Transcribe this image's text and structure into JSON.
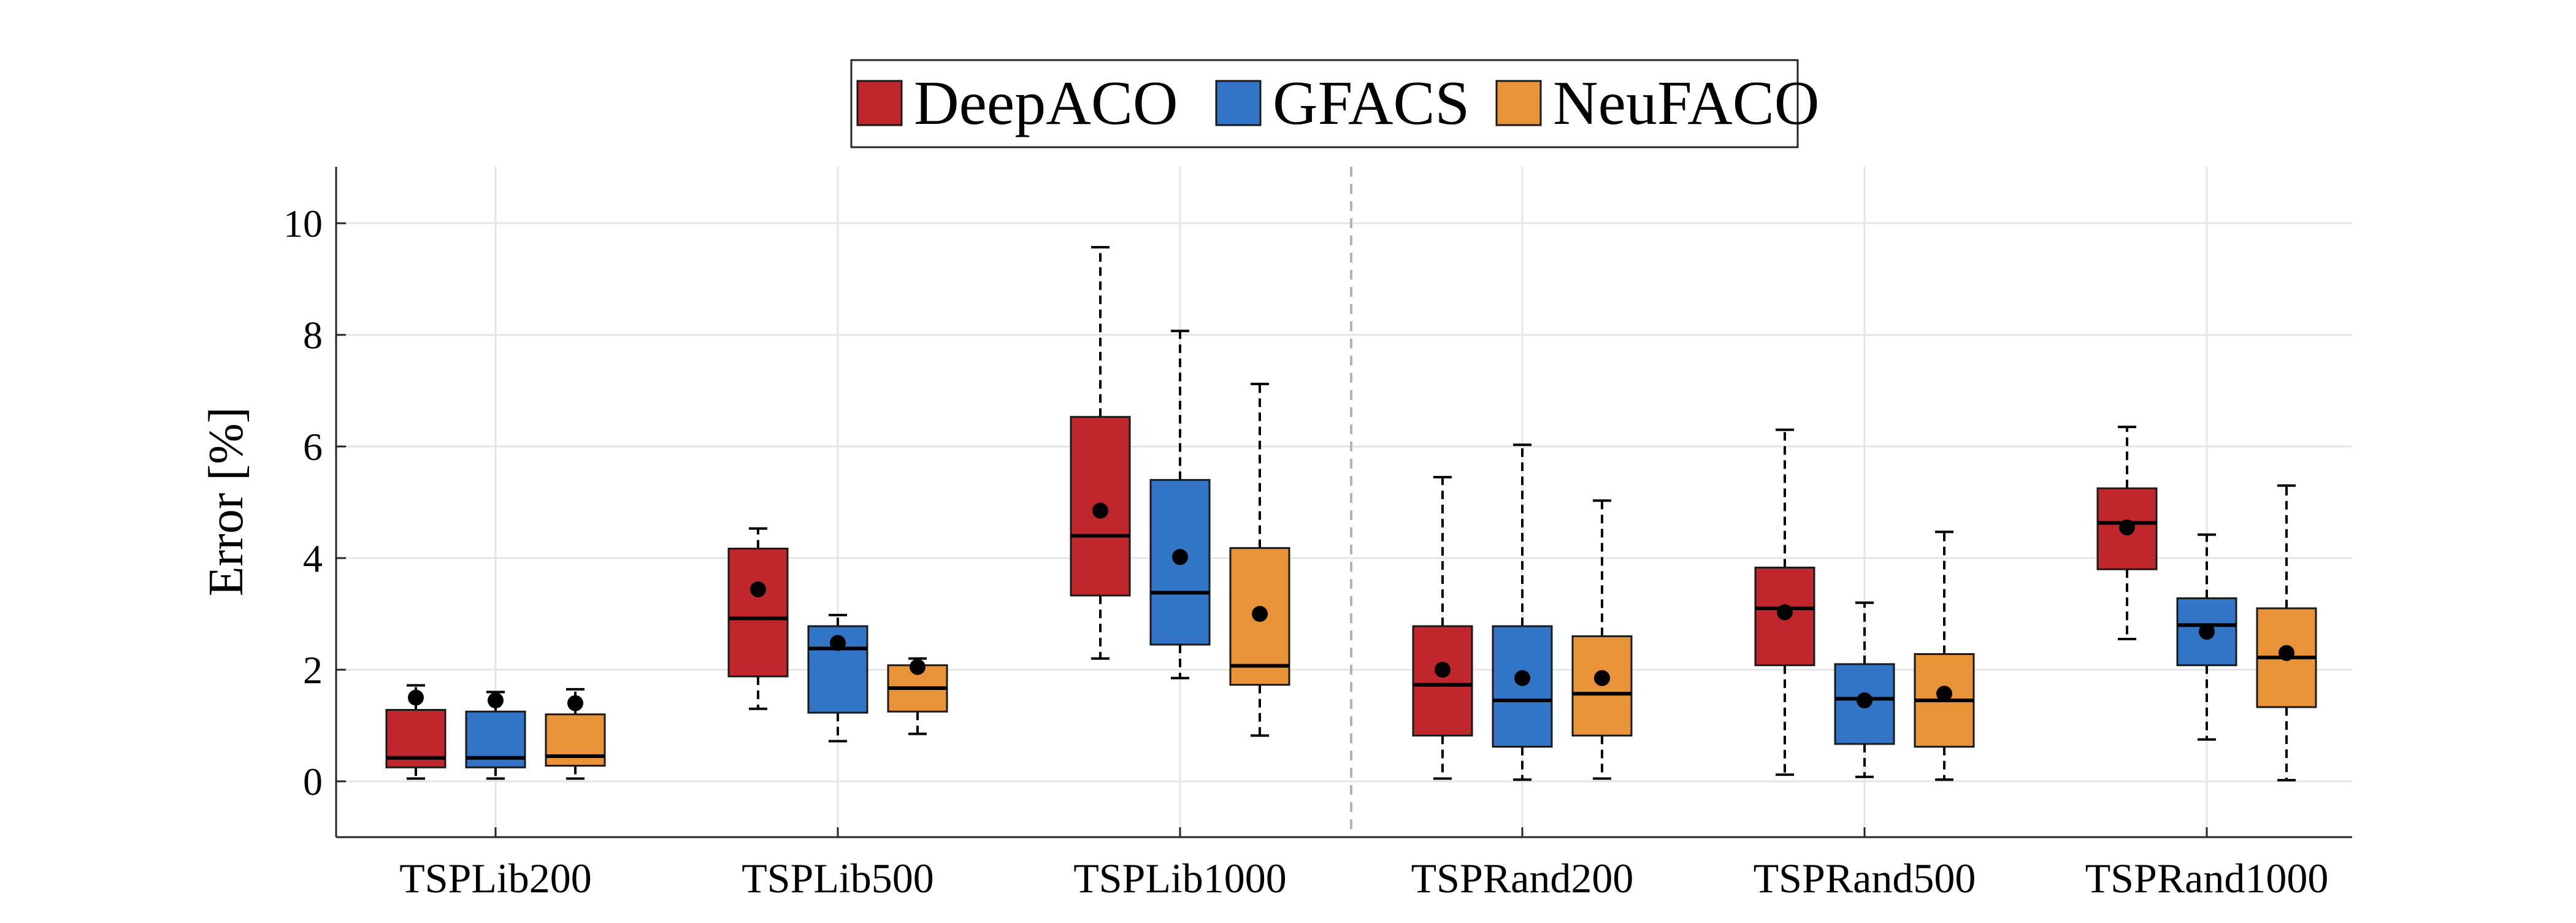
{
  "chart_data": {
    "type": "box",
    "title": "",
    "xlabel": "",
    "ylabel": "Error [%]",
    "ylim": [
      -1,
      11
    ],
    "yticks": [
      0,
      2,
      4,
      6,
      8,
      10
    ],
    "grid": true,
    "legend_position": "top-center",
    "separator_after_category": 3,
    "categories": [
      "TSPLib200",
      "TSPLib500",
      "TSPLib1000",
      "TSPRand200",
      "TSPRand500",
      "TSPRand1000"
    ],
    "series": [
      {
        "name": "DeepACO",
        "color": "#C0272D",
        "boxes": [
          {
            "whisker_low": 0.05,
            "q1": 0.25,
            "median": 0.42,
            "q3": 1.28,
            "whisker_high": 1.72,
            "mean": 1.5
          },
          {
            "whisker_low": 1.3,
            "q1": 1.88,
            "median": 2.92,
            "q3": 4.17,
            "whisker_high": 4.53,
            "mean": 3.44
          },
          {
            "whisker_low": 2.2,
            "q1": 3.33,
            "median": 4.4,
            "q3": 6.53,
            "whisker_high": 9.57,
            "mean": 4.85
          },
          {
            "whisker_low": 0.05,
            "q1": 0.82,
            "median": 1.73,
            "q3": 2.78,
            "whisker_high": 5.45,
            "mean": 2.0
          },
          {
            "whisker_low": 0.12,
            "q1": 2.08,
            "median": 3.1,
            "q3": 3.83,
            "whisker_high": 6.3,
            "mean": 3.03
          },
          {
            "whisker_low": 2.55,
            "q1": 3.8,
            "median": 4.63,
            "q3": 5.25,
            "whisker_high": 6.35,
            "mean": 4.55
          }
        ]
      },
      {
        "name": "GFACS",
        "color": "#3274C6",
        "boxes": [
          {
            "whisker_low": 0.05,
            "q1": 0.25,
            "median": 0.42,
            "q3": 1.25,
            "whisker_high": 1.6,
            "mean": 1.45
          },
          {
            "whisker_low": 0.72,
            "q1": 1.23,
            "median": 2.38,
            "q3": 2.78,
            "whisker_high": 2.98,
            "mean": 2.48
          },
          {
            "whisker_low": 1.85,
            "q1": 2.45,
            "median": 3.38,
            "q3": 5.4,
            "whisker_high": 8.07,
            "mean": 4.02
          },
          {
            "whisker_low": 0.03,
            "q1": 0.62,
            "median": 1.45,
            "q3": 2.78,
            "whisker_high": 6.03,
            "mean": 1.85
          },
          {
            "whisker_low": 0.08,
            "q1": 0.67,
            "median": 1.48,
            "q3": 2.1,
            "whisker_high": 3.2,
            "mean": 1.45
          },
          {
            "whisker_low": 0.75,
            "q1": 2.08,
            "median": 2.8,
            "q3": 3.28,
            "whisker_high": 4.42,
            "mean": 2.68
          }
        ]
      },
      {
        "name": "NeuFACO",
        "color": "#E89338",
        "boxes": [
          {
            "whisker_low": 0.05,
            "q1": 0.28,
            "median": 0.45,
            "q3": 1.2,
            "whisker_high": 1.65,
            "mean": 1.4
          },
          {
            "whisker_low": 0.85,
            "q1": 1.25,
            "median": 1.67,
            "q3": 2.08,
            "whisker_high": 2.2,
            "mean": 2.05
          },
          {
            "whisker_low": 0.82,
            "q1": 1.73,
            "median": 2.07,
            "q3": 4.18,
            "whisker_high": 7.12,
            "mean": 3.0
          },
          {
            "whisker_low": 0.05,
            "q1": 0.82,
            "median": 1.57,
            "q3": 2.6,
            "whisker_high": 5.03,
            "mean": 1.85
          },
          {
            "whisker_low": 0.03,
            "q1": 0.62,
            "median": 1.45,
            "q3": 2.28,
            "whisker_high": 4.47,
            "mean": 1.57
          },
          {
            "whisker_low": 0.02,
            "q1": 1.33,
            "median": 2.22,
            "q3": 3.1,
            "whisker_high": 5.3,
            "mean": 2.3
          }
        ]
      }
    ]
  }
}
